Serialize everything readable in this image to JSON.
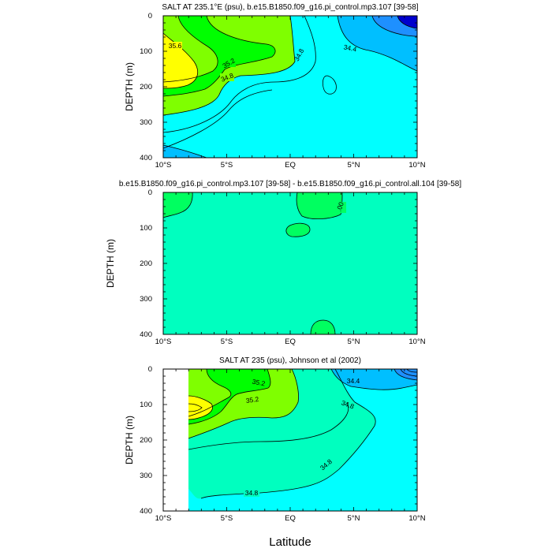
{
  "chart_data": [
    {
      "type": "contour",
      "title": "SALT AT 235.1°E (psu), b.e15.B1850.f09_g16.pi_control.mp3.107 [39-58]",
      "ylabel": "DEPTH (m)",
      "xlabel": "",
      "xlim": [
        -10,
        10
      ],
      "ylim": [
        0,
        400
      ],
      "y_inverted": true,
      "x_ticks": [
        "10°S",
        "5°S",
        "EQ",
        "5°N",
        "10°N"
      ],
      "y_ticks": [
        "0",
        "100",
        "200",
        "300",
        "400"
      ],
      "contour_labels": [
        "35.6",
        "35.2",
        "34.8",
        "34.8",
        "34.4"
      ],
      "colors": {
        "fresh": "#0000cd",
        "blue": "#1e90ff",
        "sky": "#00bfff",
        "cyan": "#00ffff",
        "lightgreen": "#7fff00",
        "green": "#00ff00",
        "yellow": "#ffff00"
      }
    },
    {
      "type": "contour",
      "title": "b.e15.B1850.f09_g16.pi_control.mp3.107 [39-58] - b.e15.B1850.f09_g16.pi_control.all.104 [39-58]",
      "ylabel": "DEPTH (m)",
      "xlabel": "",
      "xlim": [
        -10,
        10
      ],
      "ylim": [
        0,
        400
      ],
      "y_inverted": true,
      "x_ticks": [
        "10°S",
        "5°S",
        "EQ",
        "5°N",
        "10°N"
      ],
      "y_ticks": [
        "0",
        "100",
        "200",
        "300",
        "400"
      ],
      "contour_labels": [
        ".00"
      ],
      "colors": {
        "background": "#00ffbf",
        "positive": "#00ff60"
      }
    },
    {
      "type": "contour",
      "title": "SALT AT 235 (psu), Johnson et al (2002)",
      "ylabel": "DEPTH (m)",
      "xlabel": "Latitude",
      "xlim": [
        -10,
        10
      ],
      "ylim": [
        0,
        400
      ],
      "y_inverted": true,
      "x_ticks": [
        "10°S",
        "5°S",
        "EQ",
        "5°N",
        "10°N"
      ],
      "y_ticks": [
        "0",
        "100",
        "200",
        "300",
        "400"
      ],
      "contour_labels": [
        "35.2",
        "35.2",
        "34.8",
        "34.8",
        "34.8",
        "34.4"
      ],
      "colors": {
        "fresh": "#1e90ff",
        "sky": "#00bfff",
        "cyan": "#00ffff",
        "teal": "#00ffbf",
        "lightgreen": "#7fff00",
        "green": "#00ff00",
        "yellow": "#ffff00"
      }
    }
  ]
}
